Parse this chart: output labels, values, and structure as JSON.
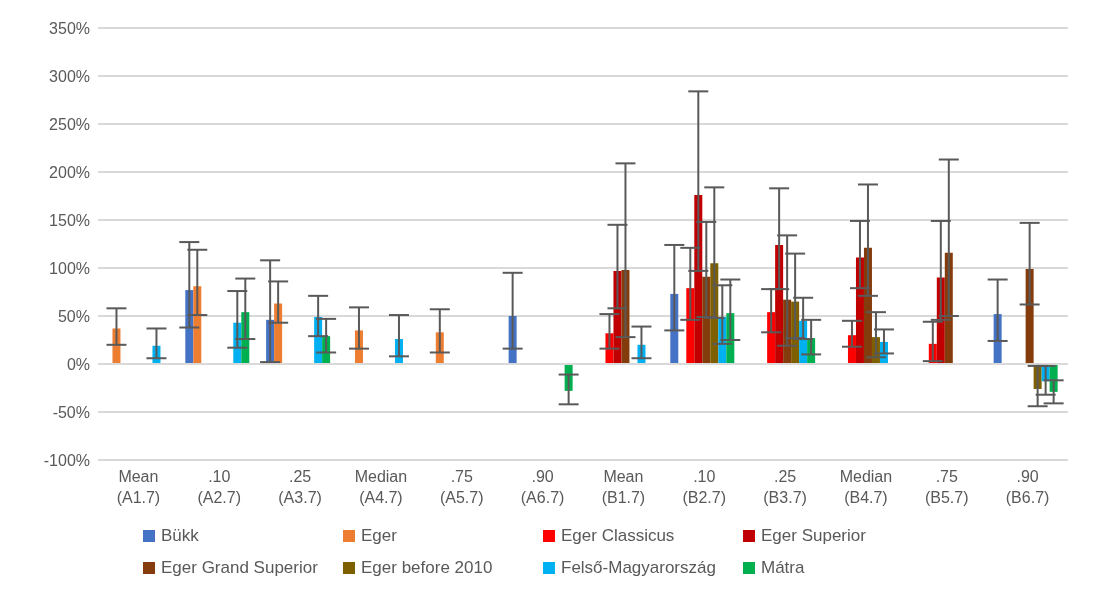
{
  "chart_data": {
    "type": "bar",
    "categories": [
      "Mean (A1.7)",
      ".10 (A2.7)",
      ".25 (A3.7)",
      "Median (A4.7)",
      ".75 (A5.7)",
      ".90 (A6.7)",
      "Mean (B1.7)",
      ".10 (B2.7)",
      ".25 (B3.7)",
      "Median (B4.7)",
      ".75 (B5.7)",
      ".90 (B6.7)"
    ],
    "series": [
      {
        "name": "Bükk",
        "color": "#4472c4",
        "values": [
          null,
          77,
          46,
          null,
          null,
          50,
          null,
          73,
          null,
          null,
          null,
          52
        ],
        "errors": [
          null,
          [
            38,
            127
          ],
          [
            2,
            108
          ],
          null,
          null,
          [
            16,
            95
          ],
          null,
          [
            35,
            124
          ],
          null,
          null,
          null,
          [
            24,
            88
          ]
        ]
      },
      {
        "name": "Eger",
        "color": "#ed7d31",
        "values": [
          37,
          81,
          63,
          35,
          33,
          null,
          null,
          null,
          null,
          null,
          null,
          null
        ],
        "errors": [
          [
            20,
            58
          ],
          [
            51,
            119
          ],
          [
            43,
            86
          ],
          [
            16,
            59
          ],
          [
            12,
            57
          ],
          null,
          null,
          null,
          null,
          null,
          null,
          null
        ]
      },
      {
        "name": "Eger Classicus",
        "color": "#ff0000",
        "values": [
          null,
          null,
          null,
          null,
          null,
          null,
          32,
          79,
          54,
          30,
          21,
          null
        ],
        "errors": [
          null,
          null,
          null,
          null,
          null,
          null,
          [
            16,
            52
          ],
          [
            46,
            121
          ],
          [
            33,
            78
          ],
          [
            18,
            45
          ],
          [
            3,
            44
          ],
          null
        ]
      },
      {
        "name": "Eger Superior",
        "color": "#c00000",
        "values": [
          null,
          null,
          null,
          null,
          null,
          null,
          97,
          176,
          124,
          111,
          90,
          null
        ],
        "errors": [
          null,
          null,
          null,
          null,
          null,
          null,
          [
            58,
            145
          ],
          [
            97,
            284
          ],
          [
            78,
            183
          ],
          [
            79,
            149
          ],
          [
            46,
            149
          ],
          null
        ]
      },
      {
        "name": "Eger Grand Superior",
        "color": "#843c0c",
        "values": [
          null,
          null,
          null,
          null,
          null,
          null,
          98,
          91,
          67,
          121,
          116,
          99
        ],
        "errors": [
          null,
          null,
          null,
          null,
          null,
          null,
          [
            28,
            209
          ],
          [
            49,
            148
          ],
          [
            19,
            134
          ],
          [
            71,
            187
          ],
          [
            50,
            213
          ],
          [
            62,
            147
          ]
        ]
      },
      {
        "name": "Eger before 2010",
        "color": "#7f6000",
        "values": [
          null,
          null,
          null,
          null,
          null,
          null,
          null,
          105,
          65,
          28,
          null,
          -26
        ],
        "errors": [
          null,
          null,
          null,
          null,
          null,
          null,
          null,
          [
            48,
            184
          ],
          [
            27,
            115
          ],
          [
            7,
            54
          ],
          null,
          [
            -44,
            -2
          ]
        ]
      },
      {
        "name": "Felső-Magyarország",
        "color": "#00b0f0",
        "values": [
          19,
          43,
          49,
          26,
          null,
          null,
          20,
          49,
          45,
          23,
          null,
          -18
        ],
        "errors": [
          [
            6,
            37
          ],
          [
            17,
            76
          ],
          [
            29,
            71
          ],
          [
            8,
            51
          ],
          null,
          null,
          [
            6,
            39
          ],
          [
            21,
            82
          ],
          [
            26,
            69
          ],
          [
            11,
            36
          ],
          null,
          [
            -32,
            -2
          ]
        ]
      },
      {
        "name": "Mátra",
        "color": "#00b050",
        "values": [
          null,
          54,
          29,
          null,
          null,
          -28,
          null,
          53,
          27,
          null,
          null,
          -29
        ],
        "errors": [
          null,
          [
            26,
            89
          ],
          [
            12,
            47
          ],
          null,
          null,
          [
            -42,
            -11
          ],
          null,
          [
            25,
            88
          ],
          [
            10,
            46
          ],
          null,
          null,
          [
            -41,
            -17
          ]
        ]
      }
    ],
    "ylim": [
      -100,
      350
    ],
    "yticks": [
      {
        "value": -100,
        "label": "-100%"
      },
      {
        "value": -50,
        "label": "-50%"
      },
      {
        "value": 0,
        "label": "0%"
      },
      {
        "value": 50,
        "label": "50%"
      },
      {
        "value": 100,
        "label": "100%"
      },
      {
        "value": 150,
        "label": "150%"
      },
      {
        "value": 200,
        "label": "200%"
      },
      {
        "value": 250,
        "label": "250%"
      },
      {
        "value": 300,
        "label": "300%"
      },
      {
        "value": 350,
        "label": "350%"
      }
    ],
    "grid": "y",
    "legend": "bottom"
  }
}
